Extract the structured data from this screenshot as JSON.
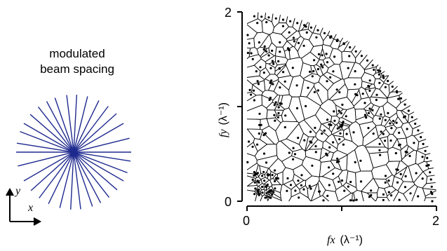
{
  "caption": {
    "line1": "modulated",
    "line2": "beam spacing"
  },
  "starburst": {
    "line_count": 16,
    "color": "#1f2a8f"
  },
  "orientation": {
    "x_label": "x",
    "y_label": "y"
  },
  "plot": {
    "x_axis": {
      "ticks": [
        "0",
        "2"
      ],
      "label_var": "fx",
      "label_unit": "(λ⁻¹)",
      "range": [
        0,
        2
      ]
    },
    "y_axis": {
      "ticks": [
        "0",
        "2"
      ],
      "label_var": "fy",
      "label_unit": "(λ⁻¹)",
      "range": [
        0,
        2
      ]
    },
    "region": "quarter disk",
    "point_color": "#000000",
    "edge_color": "#000000"
  }
}
